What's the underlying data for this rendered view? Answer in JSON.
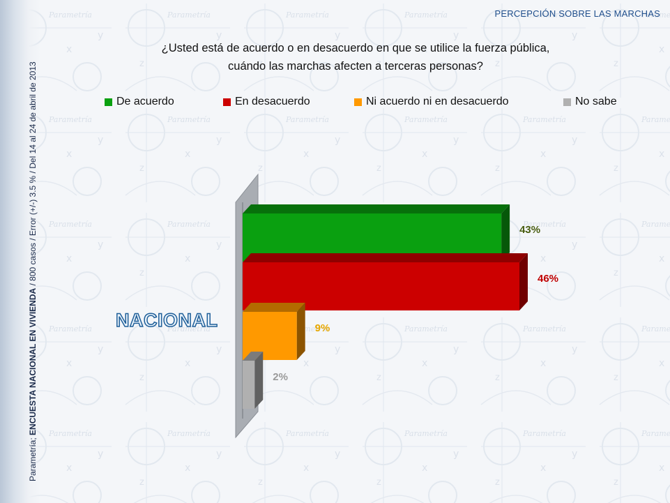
{
  "header": {
    "section_title": "PERCEPCIÓN SOBRE LAS MARCHAS",
    "question_line1": "¿Usted está de acuerdo o en desacuerdo en que se utilice la fuerza pública,",
    "question_line2": "cuándo las marchas afecten a terceras personas?"
  },
  "sidebar": {
    "source_prefix": "Parametría; ",
    "source_bold": "ENCUESTA NACIONAL EN VIVIENDA",
    "source_suffix": " / 800 casos / Error (+/-) 3.5 % / Del 14 al 24  de abril de 2013"
  },
  "chart_data": {
    "type": "bar",
    "orientation": "horizontal",
    "style": "3d",
    "categories": [
      "NACIONAL"
    ],
    "series": [
      {
        "name": "De acuerdo",
        "value": 43,
        "label": "43%",
        "color": "#0aa010",
        "label_color": "#4a5e12"
      },
      {
        "name": "En desacuerdo",
        "value": 46,
        "label": "46%",
        "color": "#cc0000",
        "label_color": "#c00000"
      },
      {
        "name": "Ni acuerdo ni en desacuerdo",
        "value": 9,
        "label": "9%",
        "color": "#ff9900",
        "label_color": "#e8a800"
      },
      {
        "name": "No sabe",
        "value": 2,
        "label": "2%",
        "color": "#b0b0b0",
        "label_color": "#9a9a9a"
      }
    ],
    "xlim": [
      0,
      46
    ],
    "legend_position": "top",
    "grid": false
  },
  "icons": {
    "background": "parametria-watermark-icon"
  }
}
